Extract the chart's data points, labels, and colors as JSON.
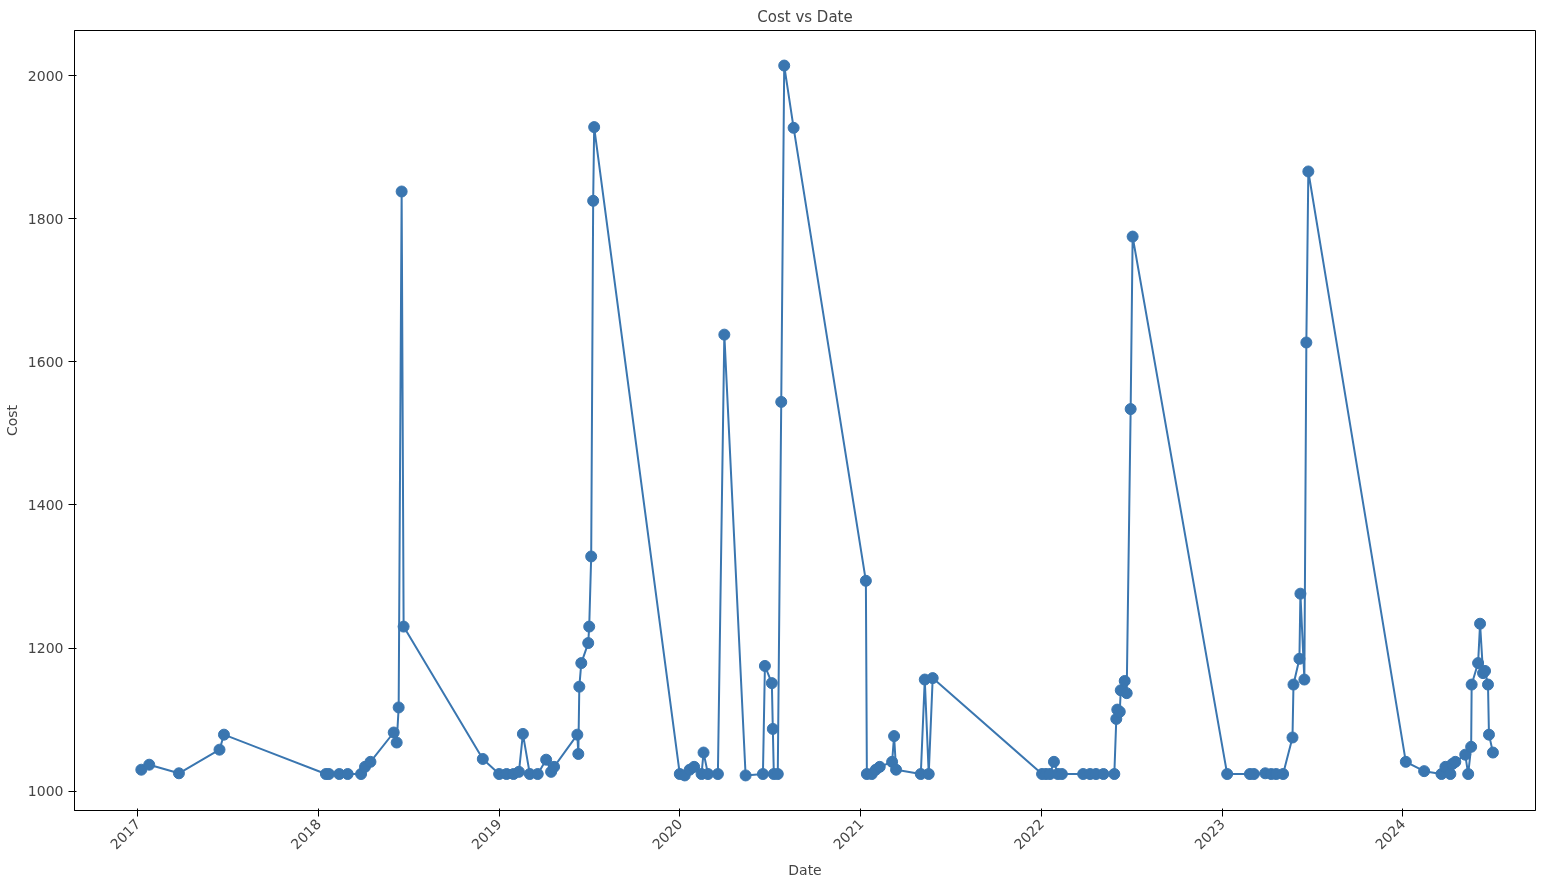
{
  "chart_data": {
    "type": "line",
    "title": "Cost vs Date",
    "xlabel": "Date",
    "ylabel": "Cost",
    "marker": "circle",
    "line_style": "solid",
    "grid": false,
    "xlim": [
      "2016-08-26",
      "2024-09-25"
    ],
    "ylim": [
      973,
      2063
    ],
    "xticks": [
      "2017",
      "2018",
      "2019",
      "2020",
      "2021",
      "2022",
      "2023",
      "2024"
    ],
    "yticks": [
      1000,
      1200,
      1400,
      1600,
      1800,
      2000
    ],
    "series": [
      {
        "color": "#3a76b0",
        "x": [
          "2017-01-08",
          "2017-01-24",
          "2017-03-25",
          "2017-06-15",
          "2017-06-24",
          "2018-01-16",
          "2018-01-22",
          "2018-02-12",
          "2018-03-01",
          "2018-03-28",
          "2018-04-05",
          "2018-04-16",
          "2018-06-02",
          "2018-06-08",
          "2018-06-12",
          "2018-06-18",
          "2018-06-22",
          "2018-11-29",
          "2019-01-01",
          "2019-01-16",
          "2019-01-30",
          "2019-02-10",
          "2019-02-18",
          "2019-03-04",
          "2019-03-20",
          "2019-04-06",
          "2019-04-16",
          "2019-04-22",
          "2019-06-08",
          "2019-06-10",
          "2019-06-12",
          "2019-06-16",
          "2019-06-30",
          "2019-07-02",
          "2019-07-06",
          "2019-07-10",
          "2019-07-12",
          "2020-01-01",
          "2020-01-11",
          "2020-01-21",
          "2020-01-30",
          "2020-02-14",
          "2020-02-18",
          "2020-02-27",
          "2020-03-18",
          "2020-03-31",
          "2020-05-13",
          "2020-06-17",
          "2020-06-21",
          "2020-07-05",
          "2020-07-07",
          "2020-07-09",
          "2020-07-17",
          "2020-07-24",
          "2020-07-30",
          "2020-08-18",
          "2021-01-11",
          "2021-01-13",
          "2021-01-23",
          "2021-01-31",
          "2021-02-08",
          "2021-03-05",
          "2021-03-09",
          "2021-03-13",
          "2021-05-02",
          "2021-05-10",
          "2021-05-18",
          "2021-05-26",
          "2022-01-02",
          "2022-01-10",
          "2022-01-18",
          "2022-01-26",
          "2022-02-03",
          "2022-02-11",
          "2022-03-26",
          "2022-04-09",
          "2022-04-21",
          "2022-05-06",
          "2022-05-28",
          "2022-06-01",
          "2022-06-03",
          "2022-06-08",
          "2022-06-10",
          "2022-06-18",
          "2022-06-22",
          "2022-06-30",
          "2022-07-04",
          "2023-01-11",
          "2023-02-26",
          "2023-03-06",
          "2023-03-29",
          "2023-04-10",
          "2023-04-20",
          "2023-05-04",
          "2023-05-23",
          "2023-05-25",
          "2023-06-06",
          "2023-06-08",
          "2023-06-16",
          "2023-06-20",
          "2023-06-24",
          "2024-01-07",
          "2024-02-13",
          "2024-03-19",
          "2024-03-27",
          "2024-04-06",
          "2024-04-10",
          "2024-04-16",
          "2024-05-06",
          "2024-05-12",
          "2024-05-18",
          "2024-05-19",
          "2024-06-01",
          "2024-06-05",
          "2024-06-11",
          "2024-06-15",
          "2024-06-21",
          "2024-06-23",
          "2024-07-01"
        ],
        "values": [
          1030,
          1037,
          1025,
          1058,
          1079,
          1024,
          1024,
          1024,
          1024,
          1024,
          1034,
          1041,
          1082,
          1068,
          1117,
          1838,
          1230,
          1045,
          1024,
          1024,
          1024,
          1027,
          1080,
          1024,
          1024,
          1044,
          1027,
          1034,
          1079,
          1052,
          1146,
          1179,
          1207,
          1230,
          1328,
          1825,
          1928,
          1024,
          1022,
          1030,
          1034,
          1024,
          1054,
          1024,
          1024,
          1638,
          1022,
          1024,
          1175,
          1151,
          1087,
          1024,
          1024,
          1544,
          2014,
          1927,
          1294,
          1024,
          1024,
          1030,
          1034,
          1041,
          1077,
          1030,
          1024,
          1156,
          1024,
          1158,
          1024,
          1024,
          1024,
          1041,
          1024,
          1024,
          1024,
          1024,
          1024,
          1024,
          1024,
          1101,
          1114,
          1111,
          1141,
          1154,
          1137,
          1534,
          1775,
          1024,
          1024,
          1024,
          1025,
          1024,
          1024,
          1024,
          1075,
          1149,
          1185,
          1276,
          1156,
          1627,
          1866,
          1041,
          1028,
          1024,
          1034,
          1024,
          1038,
          1041,
          1051,
          1024,
          1062,
          1149,
          1179,
          1234,
          1165,
          1168,
          1149,
          1079,
          1054
        ]
      }
    ]
  }
}
